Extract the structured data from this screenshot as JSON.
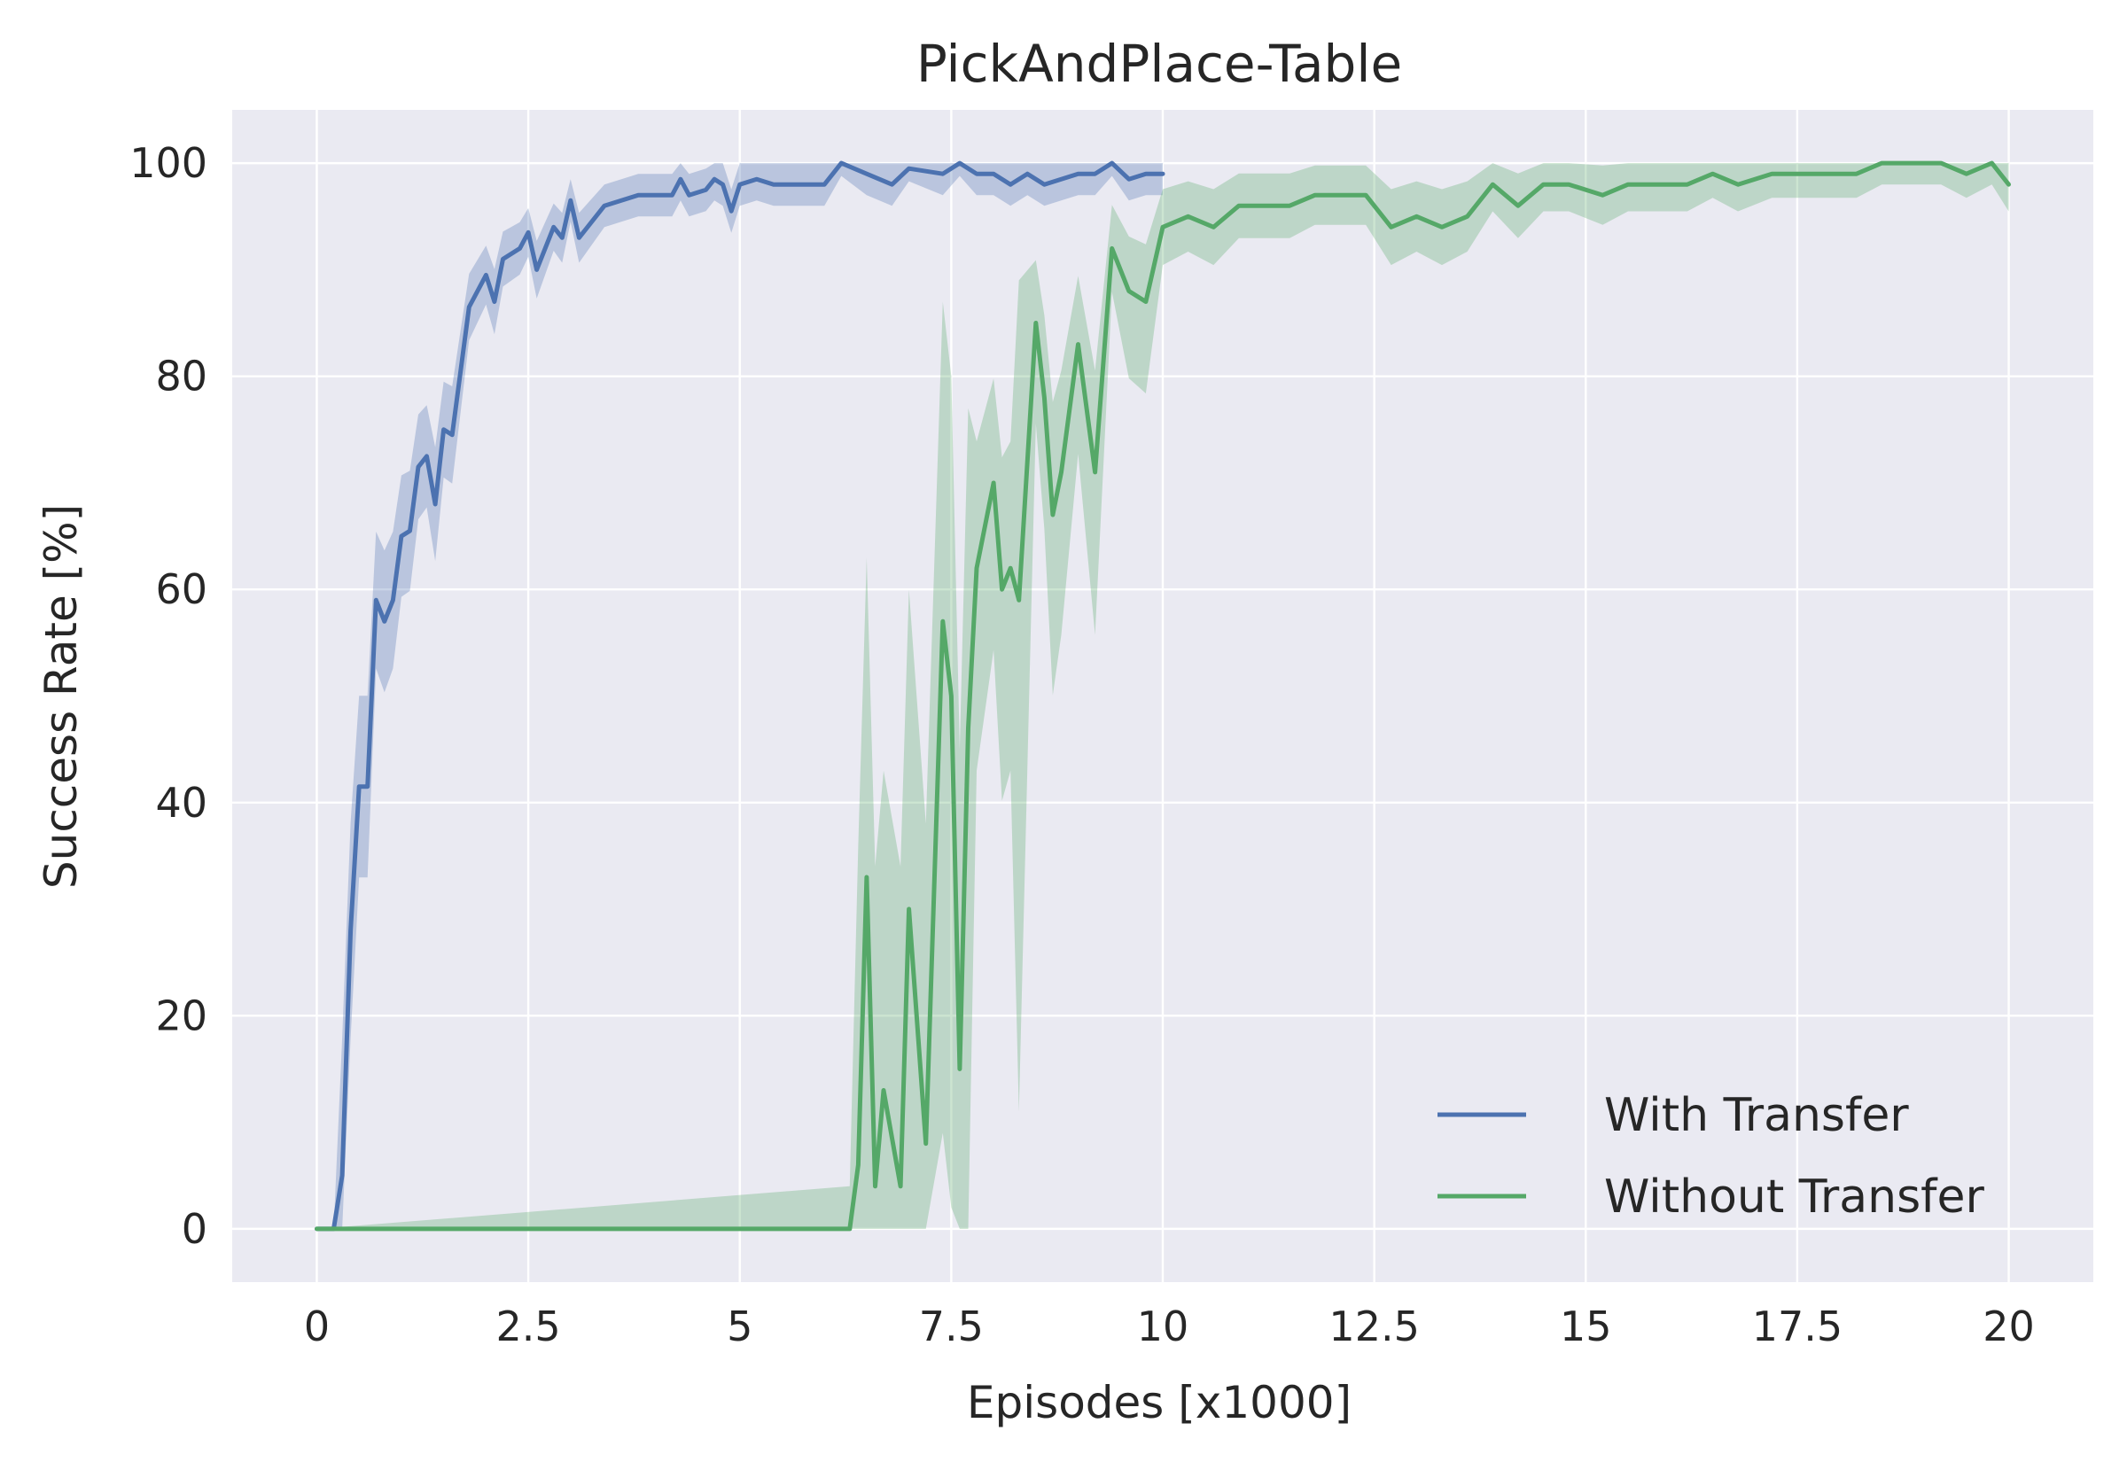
{
  "chart_data": {
    "type": "line",
    "title": "PickAndPlace-Table",
    "xlabel": "Episodes [x1000]",
    "ylabel": "Success Rate [%]",
    "xlim": [
      -1,
      21
    ],
    "ylim": [
      -5,
      105
    ],
    "xticks": [
      0,
      2.5,
      5,
      7.5,
      10,
      12.5,
      15,
      17.5,
      20
    ],
    "xtick_labels": [
      "0",
      "2.5",
      "5",
      "7.5",
      "10",
      "12.5",
      "15",
      "17.5",
      "20"
    ],
    "yticks": [
      0,
      20,
      40,
      60,
      80,
      100
    ],
    "ytick_labels": [
      "0",
      "20",
      "40",
      "60",
      "80",
      "100"
    ],
    "grid": true,
    "legend": "bottom-right",
    "series": [
      {
        "name": "With Transfer",
        "color": "#4C72B0",
        "x": [
          0,
          0.2,
          0.3,
          0.4,
          0.5,
          0.6,
          0.7,
          0.8,
          0.9,
          1.0,
          1.1,
          1.2,
          1.3,
          1.4,
          1.5,
          1.6,
          1.8,
          2.0,
          2.1,
          2.2,
          2.4,
          2.5,
          2.6,
          2.8,
          2.9,
          3.0,
          3.1,
          3.4,
          3.6,
          3.8,
          4.2,
          4.3,
          4.4,
          4.6,
          4.7,
          4.8,
          4.9,
          5.0,
          5.2,
          5.4,
          5.6,
          5.8,
          6.0,
          6.2,
          6.5,
          6.8,
          7.0,
          7.4,
          7.6,
          7.8,
          8.0,
          8.2,
          8.4,
          8.6,
          9.0,
          9.2,
          9.4,
          9.6,
          9.8,
          10.0
        ],
        "y": [
          0,
          0,
          5,
          28,
          41.5,
          41.5,
          59,
          57,
          59,
          65,
          65.5,
          71.5,
          72.5,
          68,
          75,
          74.5,
          86.5,
          89.5,
          87,
          91,
          92,
          93.5,
          90,
          94,
          93,
          96.5,
          93,
          96,
          96.5,
          97,
          97,
          98.5,
          97,
          97.5,
          98.5,
          98,
          95.5,
          98,
          98.5,
          98,
          98,
          98,
          98,
          100,
          99,
          98,
          99.5,
          99,
          100,
          99,
          99,
          98,
          99,
          98,
          99,
          99,
          100,
          98.5,
          99,
          99
        ]
      },
      {
        "name": "Without Transfer",
        "color": "#55A868",
        "x": [
          0,
          6.3,
          6.4,
          6.5,
          6.6,
          6.7,
          6.9,
          7.0,
          7.2,
          7.4,
          7.5,
          7.6,
          7.7,
          7.8,
          8.0,
          8.1,
          8.2,
          8.3,
          8.5,
          8.6,
          8.7,
          8.8,
          9.0,
          9.2,
          9.4,
          9.6,
          9.8,
          10.0,
          10.3,
          10.6,
          10.9,
          11.2,
          11.5,
          11.8,
          12.1,
          12.4,
          12.7,
          13.0,
          13.3,
          13.6,
          13.9,
          14.2,
          14.5,
          14.8,
          15.2,
          15.5,
          15.8,
          16.2,
          16.5,
          16.8,
          17.2,
          17.5,
          17.8,
          18.2,
          18.5,
          18.8,
          19.2,
          19.5,
          19.8,
          20.0
        ],
        "y": [
          0,
          0,
          6,
          33,
          4,
          13,
          4,
          30,
          8,
          57,
          50,
          15,
          47,
          62,
          70,
          60,
          62,
          59,
          85,
          78,
          67,
          71,
          83,
          71,
          92,
          88,
          87,
          94,
          95,
          94,
          96,
          96,
          96,
          97,
          97,
          97,
          94,
          95,
          94,
          95,
          98,
          96,
          98,
          98,
          97,
          98,
          98,
          98,
          99,
          98,
          99,
          99,
          99,
          99,
          100,
          100,
          100,
          99,
          100,
          98
        ]
      }
    ]
  }
}
